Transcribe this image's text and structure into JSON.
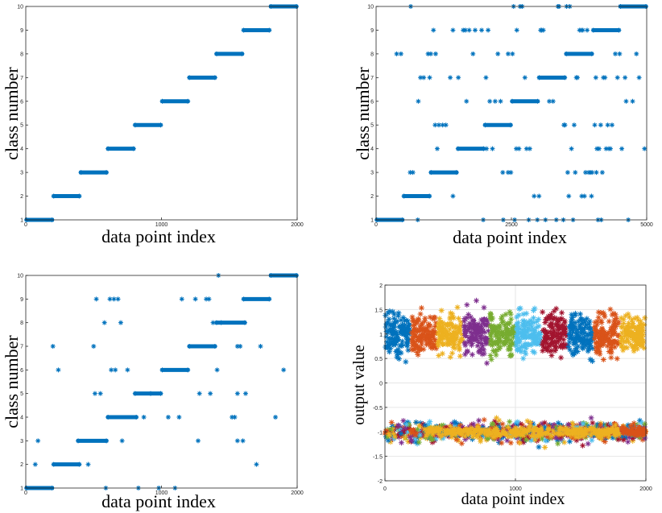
{
  "colors": {
    "class_marker": "#0072BD",
    "series": [
      "#0072BD",
      "#D95319",
      "#EDB120",
      "#7E2F8E",
      "#77AC30",
      "#4DBEEE",
      "#A2142F"
    ],
    "grid": "#e6e6e6",
    "axis": "#262626"
  },
  "chart_data": [
    {
      "type": "scatter",
      "marker": "asterisk",
      "xlabel": "data point index",
      "ylabel": "class number",
      "xlim": [
        0,
        2000
      ],
      "ylim": [
        1,
        10
      ],
      "xticks": [
        0,
        1000,
        2000
      ],
      "yticks": [
        1,
        2,
        3,
        4,
        5,
        6,
        7,
        8,
        9,
        10
      ],
      "grid": false,
      "series": [
        {
          "values": [
            {
              "x0": 0,
              "x1": 200,
              "y": 1
            },
            {
              "x0": 200,
              "x1": 400,
              "y": 2
            },
            {
              "x0": 400,
              "x1": 600,
              "y": 3
            },
            {
              "x0": 600,
              "x1": 800,
              "y": 4
            },
            {
              "x0": 800,
              "x1": 1000,
              "y": 5
            },
            {
              "x0": 1000,
              "x1": 1200,
              "y": 6
            },
            {
              "x0": 1200,
              "x1": 1400,
              "y": 7
            },
            {
              "x0": 1400,
              "x1": 1600,
              "y": 8
            },
            {
              "x0": 1600,
              "x1": 1800,
              "y": 9
            },
            {
              "x0": 1800,
              "x1": 2000,
              "y": 10
            }
          ],
          "outliers": []
        }
      ]
    },
    {
      "type": "scatter",
      "marker": "asterisk",
      "xlabel": "data point index",
      "ylabel": "class number",
      "xlim": [
        0,
        5000
      ],
      "ylim": [
        1,
        10
      ],
      "xticks": [
        0,
        2500,
        5000
      ],
      "tick_labels_x": [
        "0",
        "2500",
        "5000"
      ],
      "yticks": [
        1,
        2,
        3,
        4,
        5,
        6,
        7,
        8,
        9,
        10
      ],
      "grid": false,
      "series": [
        {
          "values": [
            {
              "x0": 0,
              "x1": 500,
              "y": 1
            },
            {
              "x0": 500,
              "x1": 1000,
              "y": 2
            },
            {
              "x0": 1000,
              "x1": 1500,
              "y": 3
            },
            {
              "x0": 1500,
              "x1": 2000,
              "y": 4
            },
            {
              "x0": 2000,
              "x1": 2500,
              "y": 5
            },
            {
              "x0": 2500,
              "x1": 3000,
              "y": 6
            },
            {
              "x0": 3000,
              "x1": 3500,
              "y": 7
            },
            {
              "x0": 3500,
              "x1": 4000,
              "y": 8
            },
            {
              "x0": 4000,
              "x1": 4500,
              "y": 9
            },
            {
              "x0": 4500,
              "x1": 5000,
              "y": 10
            }
          ],
          "outliers": [
            [
              380,
              8
            ],
            [
              460,
              8
            ],
            [
              640,
              10
            ],
            [
              770,
              1
            ],
            [
              630,
              3
            ],
            [
              680,
              3
            ],
            [
              780,
              6
            ],
            [
              820,
              7
            ],
            [
              880,
              7
            ],
            [
              960,
              8
            ],
            [
              990,
              7
            ],
            [
              1010,
              8
            ],
            [
              1060,
              9
            ],
            [
              1090,
              5
            ],
            [
              1100,
              8
            ],
            [
              1130,
              4
            ],
            [
              1160,
              5
            ],
            [
              1230,
              5
            ],
            [
              1290,
              5
            ],
            [
              1370,
              7
            ],
            [
              1420,
              9
            ],
            [
              1420,
              2
            ],
            [
              1520,
              7
            ],
            [
              1610,
              9
            ],
            [
              1650,
              9
            ],
            [
              1670,
              6
            ],
            [
              1720,
              9
            ],
            [
              1790,
              8
            ],
            [
              1830,
              9
            ],
            [
              1950,
              9
            ],
            [
              1980,
              1
            ],
            [
              2030,
              7
            ],
            [
              2040,
              4
            ],
            [
              2070,
              9
            ],
            [
              2100,
              6
            ],
            [
              2150,
              4
            ],
            [
              2200,
              6
            ],
            [
              2250,
              8
            ],
            [
              2300,
              6
            ],
            [
              2350,
              1
            ],
            [
              2340,
              3
            ],
            [
              2440,
              3
            ],
            [
              2490,
              3
            ],
            [
              2440,
              8
            ],
            [
              2520,
              8
            ],
            [
              2540,
              10
            ],
            [
              2560,
              1
            ],
            [
              2590,
              4
            ],
            [
              2600,
              9
            ],
            [
              2640,
              4
            ],
            [
              2660,
              10
            ],
            [
              2700,
              10
            ],
            [
              2750,
              7
            ],
            [
              2780,
              4
            ],
            [
              2820,
              1
            ],
            [
              2840,
              4
            ],
            [
              2920,
              2
            ],
            [
              2980,
              1
            ],
            [
              3010,
              2
            ],
            [
              3040,
              9
            ],
            [
              3060,
              9
            ],
            [
              3090,
              9
            ],
            [
              3130,
              1
            ],
            [
              3200,
              6
            ],
            [
              3270,
              6
            ],
            [
              3330,
              1
            ],
            [
              3360,
              10
            ],
            [
              3380,
              10
            ],
            [
              3460,
              1
            ],
            [
              3520,
              10
            ],
            [
              3580,
              10
            ],
            [
              3640,
              1
            ],
            [
              3700,
              7
            ],
            [
              3720,
              7
            ],
            [
              3760,
              9
            ],
            [
              3790,
              9
            ],
            [
              3820,
              9
            ],
            [
              3850,
              2
            ],
            [
              3870,
              3
            ],
            [
              3900,
              9
            ],
            [
              3930,
              3
            ],
            [
              3990,
              3
            ],
            [
              4040,
              5
            ],
            [
              4060,
              7
            ],
            [
              4080,
              4
            ],
            [
              4120,
              4
            ],
            [
              4150,
              5
            ],
            [
              4200,
              7
            ],
            [
              4230,
              7
            ],
            [
              4250,
              4
            ],
            [
              4280,
              5
            ],
            [
              4300,
              4
            ],
            [
              4330,
              4
            ],
            [
              4360,
              5
            ],
            [
              4420,
              8
            ],
            [
              4460,
              7
            ],
            [
              4500,
              8
            ],
            [
              4540,
              4
            ],
            [
              4600,
              7
            ],
            [
              4620,
              6
            ],
            [
              4660,
              1
            ],
            [
              4740,
              6
            ],
            [
              4810,
              8
            ],
            [
              4860,
              7
            ],
            [
              4960,
              4
            ],
            [
              3540,
              3
            ],
            [
              3560,
              2
            ],
            [
              3610,
              4
            ],
            [
              3470,
              5
            ],
            [
              3490,
              5
            ],
            [
              3660,
              5
            ],
            [
              3680,
              3
            ],
            [
              3800,
              2
            ],
            [
              3960,
              3
            ],
            [
              3980,
              2
            ],
            [
              4070,
              3
            ],
            [
              4100,
              1
            ],
            [
              4160,
              1
            ],
            [
              4180,
              3
            ]
          ]
        }
      ]
    },
    {
      "type": "scatter",
      "marker": "asterisk",
      "xlabel": "data point index",
      "ylabel": "class number",
      "xlim": [
        0,
        2000
      ],
      "ylim": [
        1,
        10
      ],
      "xticks": [
        0,
        1000,
        2000
      ],
      "yticks": [
        1,
        2,
        3,
        4,
        5,
        6,
        7,
        8,
        9,
        10
      ],
      "grid": false,
      "series": [
        {
          "values": [
            {
              "x0": 0,
              "x1": 200,
              "y": 1
            },
            {
              "x0": 200,
              "x1": 400,
              "y": 2
            },
            {
              "x0": 380,
              "x1": 600,
              "y": 3
            },
            {
              "x0": 600,
              "x1": 820,
              "y": 4
            },
            {
              "x0": 800,
              "x1": 1000,
              "y": 5
            },
            {
              "x0": 1000,
              "x1": 1200,
              "y": 6
            },
            {
              "x0": 1200,
              "x1": 1400,
              "y": 7
            },
            {
              "x0": 1400,
              "x1": 1620,
              "y": 8
            },
            {
              "x0": 1600,
              "x1": 1800,
              "y": 9
            },
            {
              "x0": 1800,
              "x1": 2000,
              "y": 10
            }
          ],
          "outliers": [
            [
              70,
              2
            ],
            [
              90,
              3
            ],
            [
              200,
              7
            ],
            [
              240,
              6
            ],
            [
              460,
              2
            ],
            [
              500,
              7
            ],
            [
              510,
              5
            ],
            [
              520,
              9
            ],
            [
              550,
              5
            ],
            [
              580,
              8
            ],
            [
              590,
              1
            ],
            [
              620,
              9
            ],
            [
              650,
              9
            ],
            [
              680,
              9
            ],
            [
              630,
              6
            ],
            [
              660,
              6
            ],
            [
              700,
              8
            ],
            [
              710,
              3
            ],
            [
              750,
              6
            ],
            [
              830,
              1
            ],
            [
              870,
              4
            ],
            [
              920,
              5
            ],
            [
              980,
              1
            ],
            [
              1050,
              4
            ],
            [
              1100,
              1
            ],
            [
              1130,
              4
            ],
            [
              1150,
              9
            ],
            [
              1250,
              9
            ],
            [
              1270,
              3
            ],
            [
              1280,
              5
            ],
            [
              1330,
              9
            ],
            [
              1350,
              9
            ],
            [
              1360,
              5
            ],
            [
              1380,
              8
            ],
            [
              1410,
              6
            ],
            [
              1420,
              10
            ],
            [
              1440,
              8
            ],
            [
              1540,
              4
            ],
            [
              1560,
              7
            ],
            [
              1580,
              7
            ],
            [
              1600,
              3
            ],
            [
              1700,
              2
            ],
            [
              1730,
              7
            ],
            [
              1840,
              4
            ],
            [
              1900,
              6
            ],
            [
              1560,
              3
            ],
            [
              1620,
              5
            ],
            [
              1560,
              5
            ],
            [
              1520,
              4
            ]
          ]
        }
      ]
    },
    {
      "type": "scatter",
      "marker": "asterisk",
      "xlabel": "data point index",
      "ylabel": "output value",
      "xlim": [
        0,
        2000
      ],
      "ylim": [
        -2,
        2
      ],
      "xticks": [
        0,
        1000,
        2000
      ],
      "yticks": [
        -2,
        -1.5,
        -1,
        -0.5,
        0,
        0.5,
        1,
        1.5,
        2
      ],
      "ytick_labels": [
        "-2",
        "-1.5",
        "-1",
        "-0.5",
        "0",
        "0.5",
        "1",
        "1.5",
        "2"
      ],
      "grid": true,
      "series": [
        {
          "x0": 0,
          "x1": 200,
          "high": 1.0,
          "color_index": 0
        },
        {
          "x0": 200,
          "x1": 400,
          "high": 1.0,
          "color_index": 1
        },
        {
          "x0": 400,
          "x1": 600,
          "high": 1.0,
          "color_index": 2
        },
        {
          "x0": 600,
          "x1": 800,
          "high": 1.0,
          "color_index": 3
        },
        {
          "x0": 800,
          "x1": 1000,
          "high": 1.0,
          "color_index": 4
        },
        {
          "x0": 1000,
          "x1": 1200,
          "high": 1.0,
          "color_index": 5
        },
        {
          "x0": 1200,
          "x1": 1400,
          "high": 1.0,
          "color_index": 6
        },
        {
          "x0": 1400,
          "x1": 1600,
          "high": 1.0,
          "color_index": 0
        },
        {
          "x0": 1600,
          "x1": 1800,
          "high": 1.0,
          "color_index": 1
        },
        {
          "x0": 1800,
          "x1": 2000,
          "high": 1.0,
          "color_index": 2
        }
      ],
      "low_band": {
        "y": -1.0,
        "spread": 0.35
      }
    }
  ]
}
